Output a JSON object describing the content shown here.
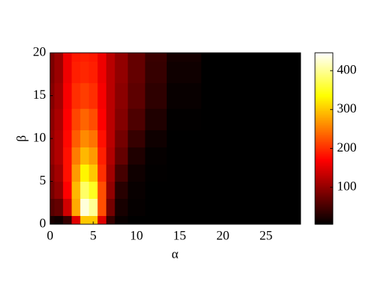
{
  "chart_data": {
    "type": "contourf",
    "xlabel": "α",
    "ylabel": "β",
    "x": [
      0,
      1,
      2,
      3,
      4,
      5,
      6,
      7,
      8,
      10,
      12,
      15,
      20,
      29
    ],
    "y": [
      0,
      2,
      4,
      6,
      8,
      10,
      12,
      15,
      18,
      20
    ],
    "z": [
      [
        20,
        15,
        40,
        150,
        300,
        300,
        150,
        40,
        10,
        5,
        5,
        5,
        5,
        5
      ],
      [
        60,
        70,
        140,
        280,
        430,
        400,
        220,
        80,
        20,
        8,
        5,
        5,
        5,
        5
      ],
      [
        80,
        100,
        170,
        290,
        380,
        350,
        220,
        100,
        30,
        10,
        5,
        5,
        5,
        5
      ],
      [
        90,
        110,
        180,
        270,
        330,
        300,
        200,
        110,
        50,
        15,
        6,
        5,
        5,
        5
      ],
      [
        100,
        120,
        180,
        250,
        290,
        270,
        190,
        120,
        70,
        25,
        8,
        5,
        5,
        5
      ],
      [
        100,
        120,
        175,
        230,
        260,
        245,
        180,
        125,
        80,
        40,
        15,
        5,
        5,
        5
      ],
      [
        95,
        115,
        170,
        215,
        235,
        220,
        170,
        125,
        90,
        55,
        25,
        6,
        5,
        5
      ],
      [
        90,
        110,
        165,
        200,
        210,
        200,
        165,
        125,
        95,
        65,
        35,
        10,
        5,
        5
      ],
      [
        85,
        105,
        160,
        190,
        195,
        190,
        160,
        125,
        100,
        70,
        40,
        15,
        5,
        5
      ],
      [
        85,
        105,
        160,
        185,
        190,
        185,
        160,
        125,
        100,
        70,
        42,
        18,
        5,
        5
      ]
    ],
    "colormap": "hot",
    "xlim": [
      0,
      29
    ],
    "ylim": [
      0,
      20
    ],
    "xticks": [
      0,
      5,
      10,
      15,
      20,
      25
    ],
    "yticks": [
      0,
      5,
      10,
      15,
      20
    ],
    "clim": [
      5,
      446
    ],
    "cticks": [
      100,
      200,
      300,
      400
    ]
  }
}
